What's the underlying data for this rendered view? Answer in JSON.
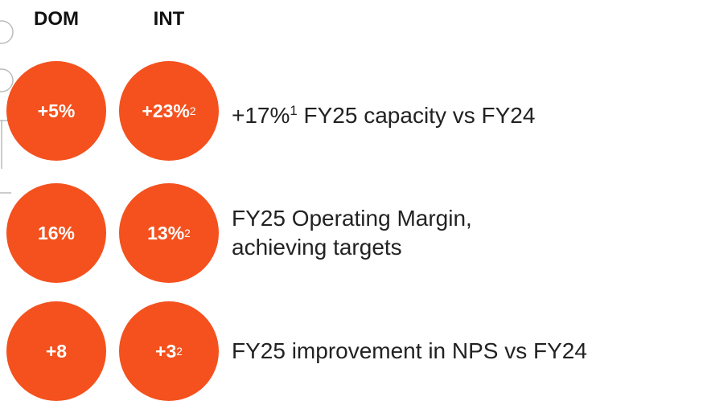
{
  "headers": {
    "dom": "DOM",
    "int": "INT"
  },
  "rows": [
    {
      "dom": "+5%",
      "int": "+23%",
      "int_note": "2",
      "desc_lead": "+17%",
      "desc_note": "1",
      "desc_lines": [
        "FY25 capacity vs FY24"
      ]
    },
    {
      "dom": "16%",
      "int": "13%",
      "int_note": "2",
      "desc_lines": [
        "FY25 Operating Margin,",
        "achieving targets"
      ]
    },
    {
      "dom": "+8",
      "int": "+3",
      "int_note": "2",
      "desc_lines": [
        "FY25 improvement in NPS vs FY24"
      ]
    }
  ]
}
